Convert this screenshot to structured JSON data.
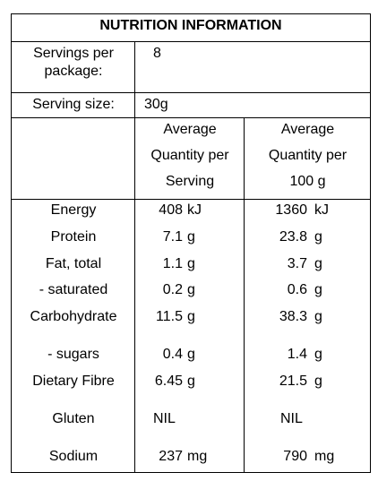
{
  "title": "NUTRITION INFORMATION",
  "servings": {
    "label_line1": "Servings per",
    "label_line2": "package:",
    "value": "8"
  },
  "serving_size": {
    "label": "Serving size:",
    "value": "30g"
  },
  "headers": {
    "per_serving": [
      "Average",
      "Quantity per",
      "Serving"
    ],
    "per_100g": [
      "Average",
      "Quantity per",
      "100 g"
    ]
  },
  "rows": [
    {
      "name": "Energy",
      "serving_value": "408",
      "serving_unit": "kJ",
      "per100_value": "1360",
      "per100_unit": "kJ"
    },
    {
      "name": "Protein",
      "serving_value": "7.1",
      "serving_unit": "g",
      "per100_value": "23.8",
      "per100_unit": "g"
    },
    {
      "name": "Fat, total",
      "serving_value": "1.1",
      "serving_unit": "g",
      "per100_value": "3.7",
      "per100_unit": "g"
    },
    {
      "name": "- saturated",
      "serving_value": "0.2",
      "serving_unit": "g",
      "per100_value": "0.6",
      "per100_unit": "g"
    },
    {
      "name": "Carbohydrate",
      "serving_value": "11.5",
      "serving_unit": "g",
      "per100_value": "38.3",
      "per100_unit": "g"
    },
    {
      "name": "- sugars",
      "serving_value": "0.4",
      "serving_unit": "g",
      "per100_value": "1.4",
      "per100_unit": "g"
    },
    {
      "name": "Dietary Fibre",
      "serving_value": "6.45",
      "serving_unit": "g",
      "per100_value": "21.5",
      "per100_unit": "g"
    },
    {
      "name": "Gluten",
      "serving_value": "NIL",
      "serving_unit": "",
      "per100_value": "NIL",
      "per100_unit": ""
    },
    {
      "name": "Sodium",
      "serving_value": "237",
      "serving_unit": "mg",
      "per100_value": "790",
      "per100_unit": "mg"
    }
  ]
}
